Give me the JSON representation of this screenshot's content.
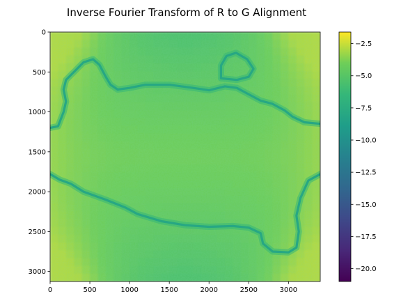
{
  "chart_data": {
    "type": "heatmap",
    "title": "Inverse Fourier Transform of R to G Alignment",
    "xlabel": "",
    "ylabel": "",
    "colormap": "viridis",
    "colorbar_range": [
      -21,
      -1.6
    ],
    "colorbar_ticks": [
      -2.5,
      -5.0,
      -7.5,
      -10.0,
      -12.5,
      -15.0,
      -17.5,
      -20.0
    ],
    "colorbar_tick_labels": [
      "−2.5",
      "−5.0",
      "−7.5",
      "−10.0",
      "−12.5",
      "−15.0",
      "−17.5",
      "−20.0"
    ],
    "x_extent": [
      0,
      3400
    ],
    "y_extent": [
      0,
      3125
    ],
    "y_axis_inverted": true,
    "xticks": [
      0,
      500,
      1000,
      1500,
      2000,
      2500,
      3000
    ],
    "yticks": [
      0,
      500,
      1000,
      1500,
      2000,
      2500,
      3000
    ],
    "background_level_center": -4.0,
    "background_level_edges": -5.5,
    "corner_level": -3.0,
    "contour_level": -8.0,
    "upper_contour": [
      [
        0,
        1200
      ],
      [
        100,
        1180
      ],
      [
        170,
        1000
      ],
      [
        200,
        870
      ],
      [
        170,
        720
      ],
      [
        200,
        600
      ],
      [
        300,
        500
      ],
      [
        420,
        380
      ],
      [
        540,
        340
      ],
      [
        620,
        410
      ],
      [
        700,
        560
      ],
      [
        760,
        660
      ],
      [
        850,
        720
      ],
      [
        1000,
        700
      ],
      [
        1200,
        660
      ],
      [
        1500,
        660
      ],
      [
        1800,
        700
      ],
      [
        2000,
        730
      ],
      [
        2200,
        680
      ],
      [
        2350,
        700
      ],
      [
        2500,
        780
      ],
      [
        2650,
        860
      ],
      [
        2800,
        900
      ],
      [
        2950,
        980
      ],
      [
        3050,
        1060
      ],
      [
        3200,
        1130
      ],
      [
        3400,
        1150
      ]
    ],
    "loop_contour": [
      [
        2150,
        580
      ],
      [
        2150,
        420
      ],
      [
        2220,
        300
      ],
      [
        2340,
        260
      ],
      [
        2480,
        340
      ],
      [
        2560,
        460
      ],
      [
        2500,
        560
      ],
      [
        2350,
        600
      ],
      [
        2150,
        580
      ]
    ],
    "lower_contour": [
      [
        0,
        1780
      ],
      [
        120,
        1850
      ],
      [
        260,
        1900
      ],
      [
        420,
        2000
      ],
      [
        700,
        2100
      ],
      [
        950,
        2200
      ],
      [
        1100,
        2280
      ],
      [
        1400,
        2370
      ],
      [
        1700,
        2420
      ],
      [
        2000,
        2440
      ],
      [
        2300,
        2430
      ],
      [
        2500,
        2450
      ],
      [
        2650,
        2520
      ],
      [
        2680,
        2650
      ],
      [
        2800,
        2750
      ],
      [
        3000,
        2760
      ],
      [
        3100,
        2700
      ],
      [
        3130,
        2500
      ],
      [
        3100,
        2300
      ],
      [
        3150,
        2080
      ],
      [
        3250,
        1860
      ],
      [
        3400,
        1780
      ]
    ]
  }
}
